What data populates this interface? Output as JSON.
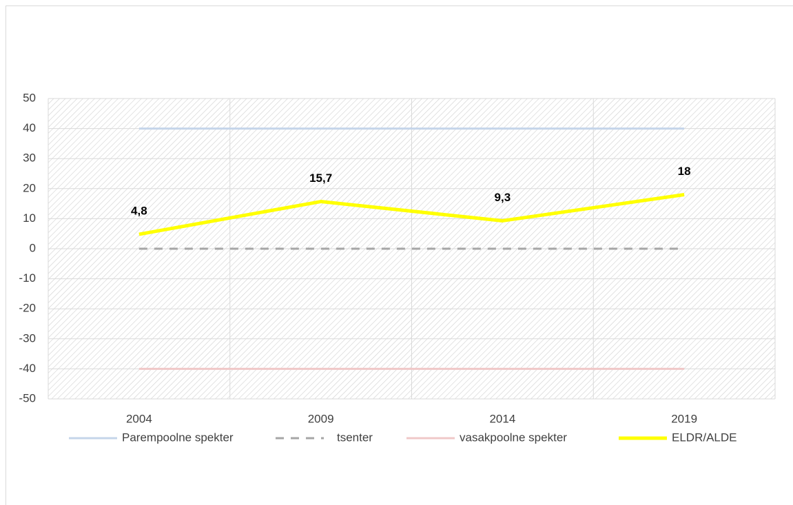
{
  "chart_data": {
    "type": "line",
    "categories": [
      "2004",
      "2009",
      "2014",
      "2019"
    ],
    "series": [
      {
        "name": "Parempoolne spekter",
        "color": "#c5d5ea",
        "line_style": "solid",
        "values": [
          40,
          40,
          40,
          40
        ]
      },
      {
        "name": "tsenter",
        "color": "#a6a6a6",
        "line_style": "dashed",
        "values": [
          0,
          0,
          0,
          0
        ]
      },
      {
        "name": "vasakpoolne spekter",
        "color": "#f0c8c8",
        "line_style": "solid",
        "values": [
          -40,
          -40,
          -40,
          -40
        ]
      },
      {
        "name": "ELDR/ALDE",
        "color": "#ffff00",
        "line_style": "solid",
        "values": [
          4.8,
          15.7,
          9.3,
          18
        ],
        "value_labels": [
          "4,8",
          "15,7",
          "9,3",
          "18"
        ]
      }
    ],
    "ylim": [
      -50,
      50
    ],
    "yticks": [
      -50,
      -40,
      -30,
      -20,
      -10,
      0,
      10,
      20,
      30,
      40,
      50
    ],
    "grid": true,
    "legend": "bottom"
  }
}
